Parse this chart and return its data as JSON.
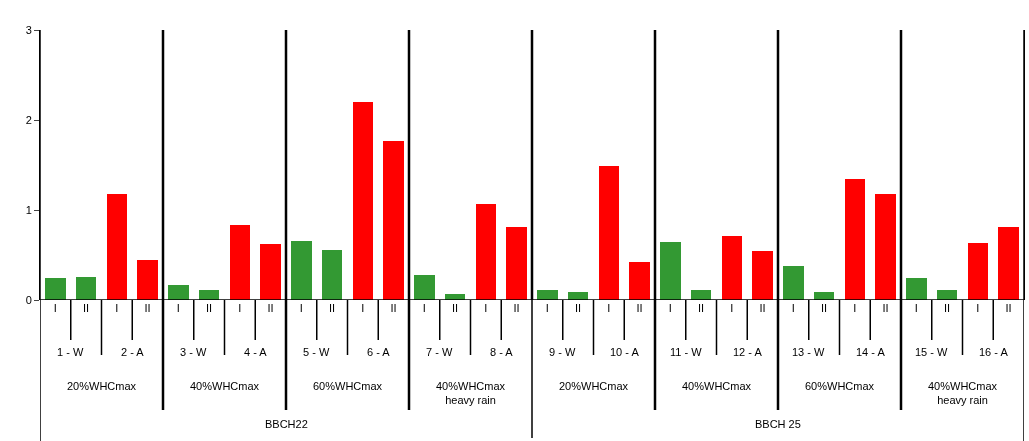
{
  "chart_data": {
    "type": "bar",
    "categories": [
      "I",
      "II",
      "I",
      "II",
      "I",
      "II",
      "I",
      "II",
      "I",
      "II",
      "I",
      "II",
      "I",
      "II",
      "I",
      "II",
      "I",
      "II",
      "I",
      "II",
      "I",
      "II",
      "I",
      "II",
      "I",
      "II",
      "I",
      "II",
      "I",
      "II",
      "I",
      "II"
    ],
    "values": [
      0.24,
      0.26,
      1.18,
      0.44,
      0.17,
      0.11,
      0.83,
      0.62,
      0.66,
      0.56,
      2.2,
      1.77,
      0.28,
      0.07,
      1.07,
      0.81,
      0.11,
      0.09,
      1.49,
      0.42,
      0.64,
      0.11,
      0.71,
      0.55,
      0.38,
      0.09,
      1.34,
      1.18,
      0.24,
      0.11,
      0.63,
      0.81
    ],
    "colors": [
      "#339933",
      "#339933",
      "#ff0000",
      "#ff0000",
      "#339933",
      "#339933",
      "#ff0000",
      "#ff0000",
      "#339933",
      "#339933",
      "#ff0000",
      "#ff0000",
      "#339933",
      "#339933",
      "#ff0000",
      "#ff0000",
      "#339933",
      "#339933",
      "#ff0000",
      "#ff0000",
      "#339933",
      "#339933",
      "#ff0000",
      "#ff0000",
      "#339933",
      "#339933",
      "#ff0000",
      "#ff0000",
      "#339933",
      "#339933",
      "#ff0000",
      "#ff0000"
    ],
    "annotations": [
      "1 - W",
      "2 - A",
      "3 - W",
      "4 - A",
      "5 - W",
      "6 - A",
      "7 - W",
      "8 - A",
      "9 - W",
      "10 - A",
      "11 - W",
      "12 - A",
      "13 - W",
      "14 - A",
      "15 - W",
      "16 - A",
      "20%WHCmax",
      "40%WHCmax",
      "60%WHCmax",
      "40%WHCmax\nheavy rain",
      "20%WHCmax",
      "40%WHCmax",
      "60%WHCmax",
      "40%WHCmax\nheavy rain",
      "BBCH22",
      "BBCH 25"
    ],
    "ylim": [
      0,
      3
    ],
    "yticks": [
      0,
      1,
      2,
      3
    ]
  }
}
